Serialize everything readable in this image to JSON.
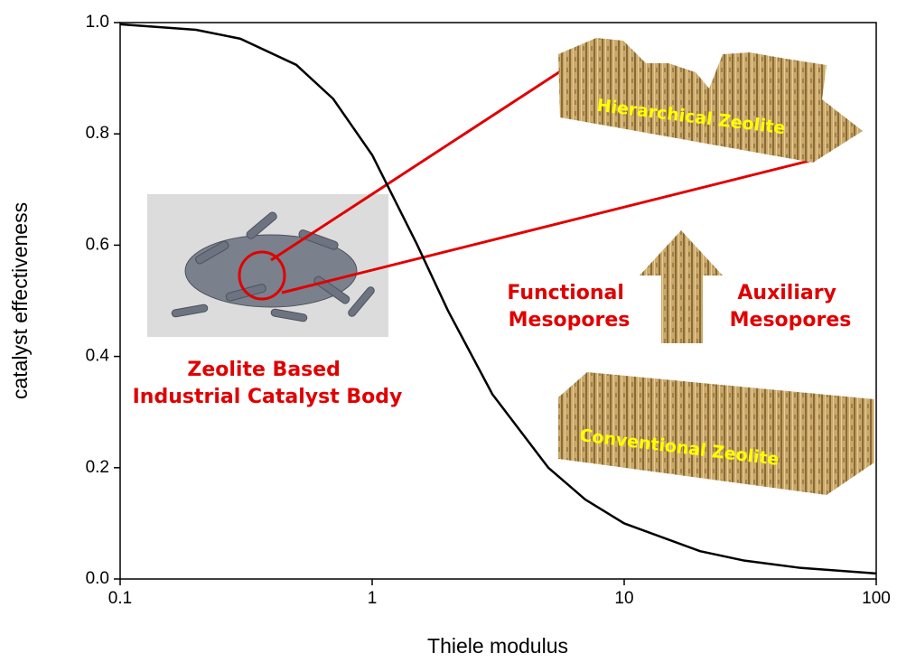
{
  "chart_data": {
    "type": "line",
    "xlabel": "Thiele modulus",
    "ylabel": "catalyst effectiveness",
    "x": [
      0.1,
      0.2,
      0.3,
      0.5,
      0.7,
      1,
      1.5,
      2,
      3,
      5,
      7,
      10,
      20,
      30,
      50,
      100
    ],
    "series": [
      {
        "color": "#000000",
        "values": [
          0.997,
          0.987,
          0.971,
          0.924,
          0.863,
          0.762,
          0.603,
          0.482,
          0.332,
          0.2,
          0.143,
          0.1,
          0.05,
          0.033,
          0.02,
          0.01
        ]
      }
    ],
    "xlim": [
      0.1,
      100
    ],
    "xscale": "log",
    "xticks": [
      0.1,
      1,
      10,
      100
    ],
    "ylim": [
      0,
      1
    ],
    "yticks": [
      {
        "value": 0,
        "label": "0.0"
      },
      {
        "value": 0.2,
        "label": "0.2"
      },
      {
        "value": 0.4,
        "label": "0.4"
      },
      {
        "value": 0.6,
        "label": "0.6"
      },
      {
        "value": 0.8,
        "label": "0.8"
      },
      {
        "value": 1,
        "label": "1.0"
      }
    ],
    "annotations": [
      {
        "lines": [
          "Zeolite Based",
          "Industrial Catalyst Body"
        ]
      },
      {
        "lines": [
          "Functional",
          "Mesopores"
        ]
      },
      {
        "lines": [
          "Auxiliary",
          "Mesopores"
        ]
      },
      {
        "lines": [
          "Hierarchical Zeolite"
        ]
      },
      {
        "lines": [
          "Conventional Zeolite"
        ]
      }
    ]
  }
}
